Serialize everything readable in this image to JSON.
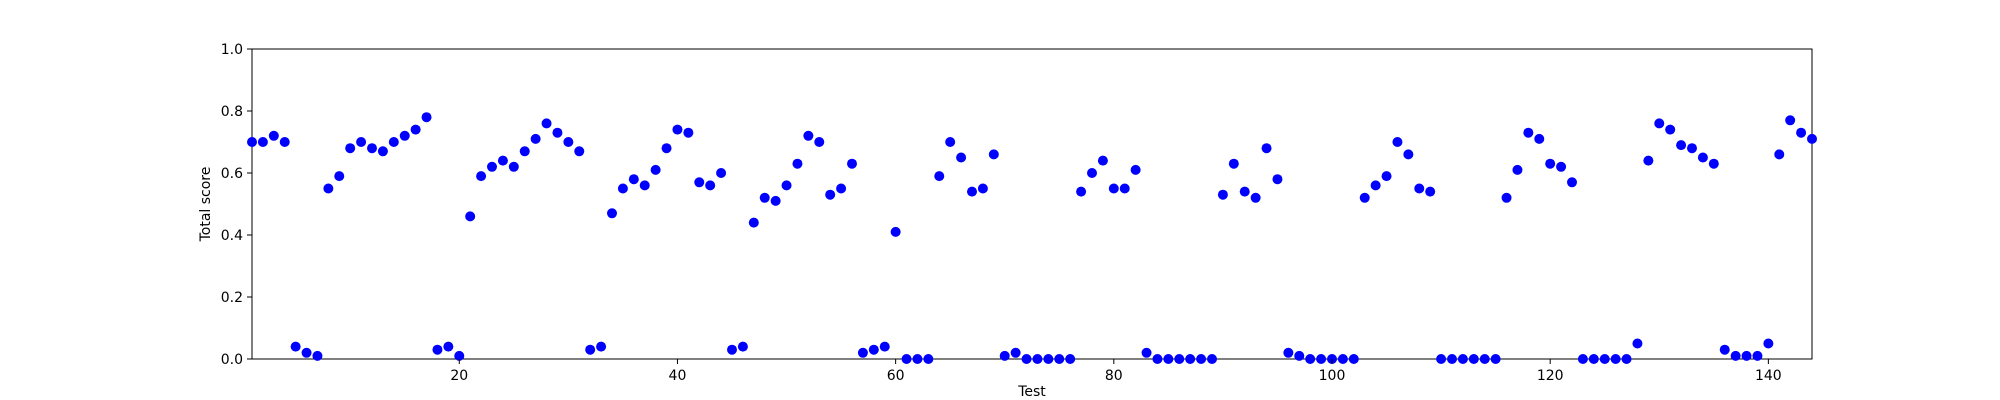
{
  "chart_data": {
    "type": "scatter",
    "title": "",
    "xlabel": "Test",
    "ylabel": "Total score",
    "xlim": [
      1,
      144
    ],
    "ylim": [
      0,
      1
    ],
    "xticks": [
      20,
      40,
      60,
      80,
      100,
      120,
      140
    ],
    "yticks": [
      0.0,
      0.2,
      0.4,
      0.6,
      0.8,
      1.0
    ],
    "ytick_labels": [
      "0.0",
      "0.2",
      "0.4",
      "0.6",
      "0.8",
      "1.0"
    ],
    "grid": false,
    "marker_color": "#0000ff",
    "series": [
      {
        "x": [
          1,
          2,
          3,
          4,
          5,
          6,
          7,
          8,
          9,
          10,
          11,
          12,
          13,
          14,
          15,
          16,
          17,
          18,
          19,
          20,
          21,
          22,
          23,
          24,
          25,
          26,
          27,
          28,
          29,
          30,
          31,
          32,
          33,
          34,
          35,
          36,
          37,
          38,
          39,
          40,
          41,
          42,
          43,
          44,
          45,
          46,
          47,
          48,
          49,
          50,
          51,
          52,
          53,
          54,
          55,
          56,
          57,
          58,
          59,
          60,
          61,
          62,
          63,
          64,
          65,
          66,
          67,
          68,
          69,
          70,
          71,
          72,
          73,
          74,
          75,
          76,
          77,
          78,
          79,
          80,
          81,
          82,
          83,
          84,
          85,
          86,
          87,
          88,
          89,
          90,
          91,
          92,
          93,
          94,
          95,
          96,
          97,
          98,
          99,
          100,
          101,
          102,
          103,
          104,
          105,
          106,
          107,
          108,
          109,
          110,
          111,
          112,
          113,
          114,
          115,
          116,
          117,
          118,
          119,
          120,
          121,
          122,
          123,
          124,
          125,
          126,
          127,
          128,
          129,
          130,
          131,
          132,
          133,
          134,
          135,
          136,
          137,
          138,
          139,
          140,
          141,
          142,
          143,
          144
        ],
        "y": [
          0.7,
          0.7,
          0.72,
          0.7,
          0.04,
          0.02,
          0.01,
          0.55,
          0.59,
          0.68,
          0.7,
          0.68,
          0.67,
          0.7,
          0.72,
          0.74,
          0.78,
          0.03,
          0.04,
          0.01,
          0.46,
          0.59,
          0.62,
          0.64,
          0.62,
          0.67,
          0.71,
          0.76,
          0.73,
          0.7,
          0.67,
          0.03,
          0.04,
          0.47,
          0.55,
          0.58,
          0.56,
          0.61,
          0.68,
          0.74,
          0.73,
          0.57,
          0.56,
          0.6,
          0.03,
          0.04,
          0.44,
          0.52,
          0.51,
          0.56,
          0.63,
          0.72,
          0.7,
          0.53,
          0.55,
          0.63,
          0.02,
          0.03,
          0.04,
          0.41,
          0.0,
          0.0,
          0.0,
          0.59,
          0.7,
          0.65,
          0.54,
          0.55,
          0.66,
          0.01,
          0.02,
          0.0,
          0.0,
          0.0,
          0.0,
          0.0,
          0.54,
          0.6,
          0.64,
          0.55,
          0.55,
          0.61,
          0.02,
          0.0,
          0.0,
          0.0,
          0.0,
          0.0,
          0.0,
          0.53,
          0.63,
          0.54,
          0.52,
          0.68,
          0.58,
          0.02,
          0.01,
          0.0,
          0.0,
          0.0,
          0.0,
          0.0,
          0.52,
          0.56,
          0.59,
          0.7,
          0.66,
          0.55,
          0.54,
          0.0,
          0.0,
          0.0,
          0.0,
          0.0,
          0.0,
          0.52,
          0.61,
          0.73,
          0.71,
          0.63,
          0.62,
          0.57,
          0.0,
          0.0,
          0.0,
          0.0,
          0.0,
          0.05,
          0.64,
          0.76,
          0.74,
          0.69,
          0.68,
          0.65,
          0.63,
          0.03,
          0.01,
          0.01,
          0.01,
          0.05,
          0.66,
          0.77,
          0.73,
          0.71
        ]
      }
    ]
  }
}
